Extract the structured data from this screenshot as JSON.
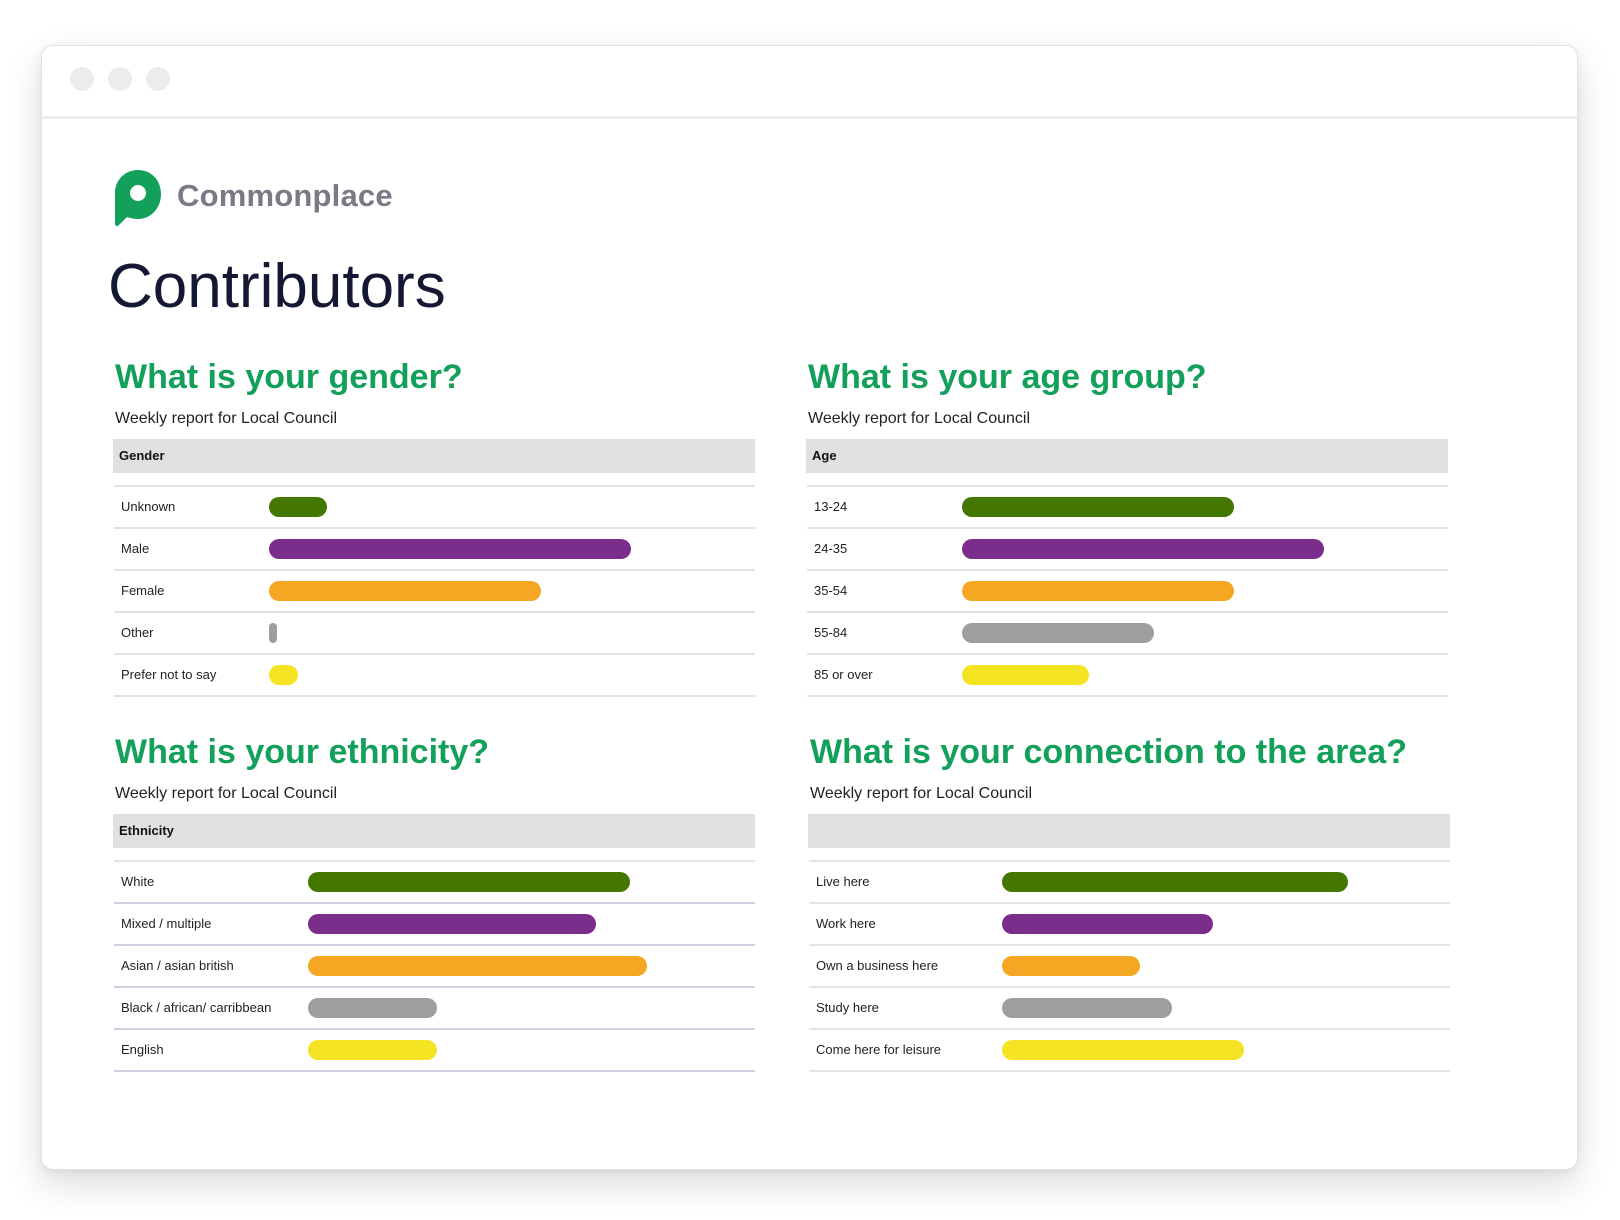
{
  "brand": {
    "name": "Commonplace",
    "logo_color": "#12a05a"
  },
  "page": {
    "title": "Contributors"
  },
  "palette": [
    "#437700",
    "#7b2d8b",
    "#f5a623",
    "#9e9e9e",
    "#f5e424"
  ],
  "panels": [
    {
      "title": "What is your gender?",
      "subtitle": "Weekly report for Local Council",
      "header": "Gender",
      "rows": [
        {
          "label": "Unknown",
          "value": 16
        },
        {
          "label": "Male",
          "value": 100
        },
        {
          "label": "Female",
          "value": 75
        },
        {
          "label": "Other",
          "value": 2
        },
        {
          "label": "Prefer not to say",
          "value": 8
        }
      ],
      "scale_max": 100
    },
    {
      "title": "What is your age group?",
      "subtitle": "Weekly report for Local Council",
      "header": "Age",
      "rows": [
        {
          "label": "13-24",
          "value": 75
        },
        {
          "label": "24-35",
          "value": 100
        },
        {
          "label": "35-54",
          "value": 75
        },
        {
          "label": "55-84",
          "value": 53
        },
        {
          "label": "85 or over",
          "value": 35
        }
      ],
      "scale_max": 100
    },
    {
      "title": "What is your ethnicity?",
      "subtitle": "Weekly report for Local Council",
      "header": "Ethnicity",
      "rows": [
        {
          "label": "White",
          "value": 95
        },
        {
          "label": "Mixed / multiple",
          "value": 85
        },
        {
          "label": "Asian / asian british",
          "value": 100
        },
        {
          "label": "Black / african/ carribbean",
          "value": 38
        },
        {
          "label": "English",
          "value": 38
        }
      ],
      "scale_max": 100
    },
    {
      "title": "What is your connection to the area?",
      "subtitle": "Weekly report for Local Council",
      "header": "",
      "rows": [
        {
          "label": "Live here",
          "value": 100
        },
        {
          "label": "Work here",
          "value": 61
        },
        {
          "label": "Own a business here",
          "value": 40
        },
        {
          "label": "Study here",
          "value": 49
        },
        {
          "label": "Come here for leisure",
          "value": 70
        }
      ],
      "scale_max": 100
    }
  ]
}
